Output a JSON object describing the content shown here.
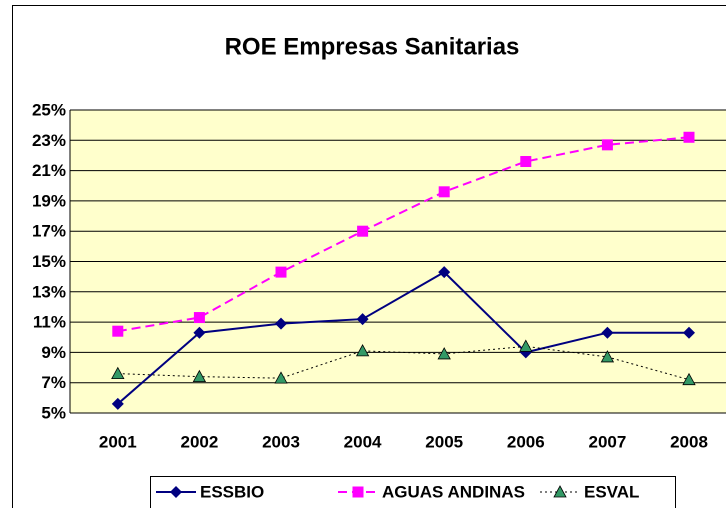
{
  "chart_data": {
    "type": "line",
    "title": "ROE Empresas Sanitarias",
    "categories": [
      "2001",
      "2002",
      "2003",
      "2004",
      "2005",
      "2006",
      "2007",
      "2008"
    ],
    "series": [
      {
        "name": "ESSBIO",
        "color": "#000080",
        "values": [
          5.6,
          10.3,
          10.9,
          11.2,
          14.3,
          9.0,
          10.3,
          10.3
        ]
      },
      {
        "name": "AGUAS ANDINAS",
        "color": "#ff00ff",
        "values": [
          10.4,
          11.3,
          14.3,
          17.0,
          19.6,
          21.6,
          22.7,
          23.2
        ]
      },
      {
        "name": "ESVAL",
        "color": "#339966",
        "values": [
          7.6,
          7.4,
          7.3,
          9.1,
          8.9,
          9.4,
          8.7,
          7.2
        ]
      }
    ],
    "ylim": [
      5,
      25
    ],
    "yticks": [
      {
        "value": 5,
        "label": "5%"
      },
      {
        "value": 7,
        "label": "7%"
      },
      {
        "value": 9,
        "label": "9%"
      },
      {
        "value": 11,
        "label": "11%"
      },
      {
        "value": 13,
        "label": "13%"
      },
      {
        "value": 15,
        "label": "15%"
      },
      {
        "value": 17,
        "label": "17%"
      },
      {
        "value": 19,
        "label": "19%"
      },
      {
        "value": 21,
        "label": "21%"
      },
      {
        "value": 23,
        "label": "23%"
      },
      {
        "value": 25,
        "label": "25%"
      }
    ],
    "grid": true,
    "legend": "bottom"
  }
}
